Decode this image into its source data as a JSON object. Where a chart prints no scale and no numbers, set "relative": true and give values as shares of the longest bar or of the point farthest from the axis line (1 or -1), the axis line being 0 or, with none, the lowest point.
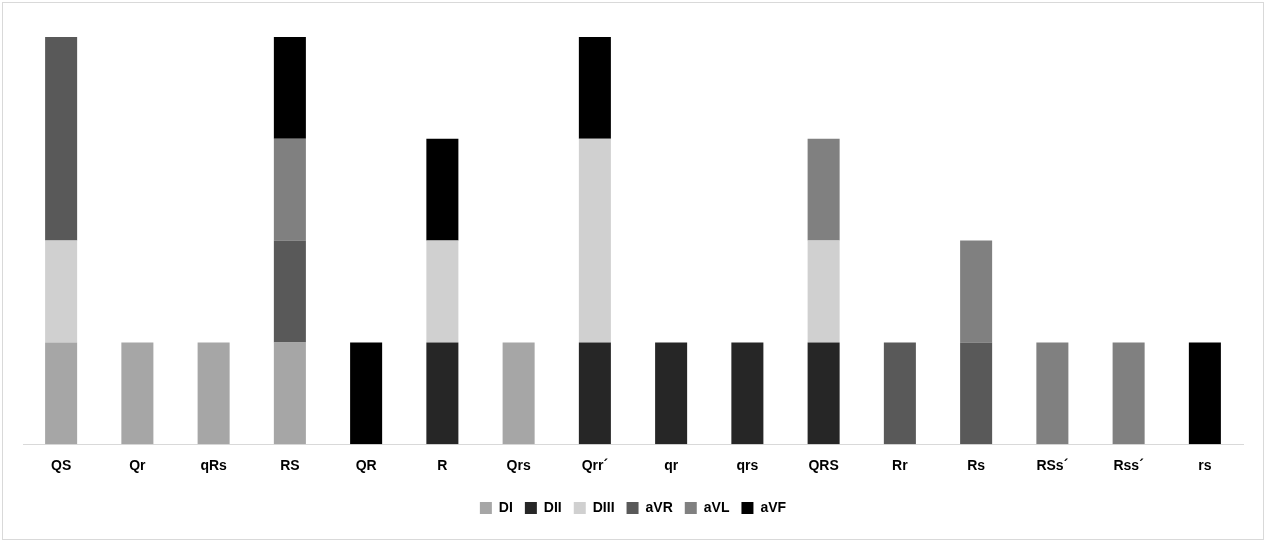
{
  "chart_data": {
    "type": "bar",
    "stacked": true,
    "relative": true,
    "legend": "bottom",
    "grid": false,
    "categories": [
      "QS",
      "Qr",
      "qRs",
      "RS",
      "QR",
      "R",
      "Qrs",
      "Qrr´",
      "qr",
      "qrs",
      "QRS",
      "Rr",
      "Rs",
      "RSs´",
      "Rss´",
      "rs"
    ],
    "series": [
      {
        "name": "DI",
        "color": "#a6a6a6",
        "values": [
          0.25,
          0.25,
          0.25,
          0.25,
          null,
          null,
          0.25,
          null,
          null,
          null,
          null,
          null,
          null,
          null,
          null,
          null
        ]
      },
      {
        "name": "DII",
        "color": "#262626",
        "values": [
          null,
          null,
          null,
          null,
          null,
          0.25,
          null,
          0.25,
          0.25,
          0.25,
          0.25,
          null,
          null,
          null,
          null,
          null
        ]
      },
      {
        "name": "DIII",
        "color": "#d0d0d0",
        "values": [
          0.25,
          null,
          null,
          null,
          null,
          0.25,
          null,
          0.5,
          null,
          null,
          0.25,
          null,
          null,
          null,
          null,
          null
        ]
      },
      {
        "name": "aVR",
        "color": "#595959",
        "values": [
          0.5,
          null,
          null,
          0.25,
          null,
          null,
          null,
          null,
          null,
          null,
          null,
          0.25,
          0.25,
          null,
          null,
          null
        ]
      },
      {
        "name": "aVL",
        "color": "#808080",
        "values": [
          null,
          null,
          null,
          0.25,
          null,
          null,
          null,
          null,
          null,
          null,
          0.25,
          null,
          0.25,
          0.25,
          0.25,
          null
        ]
      },
      {
        "name": "aVF",
        "color": "#000000",
        "values": [
          null,
          null,
          null,
          0.25,
          0.25,
          0.25,
          null,
          0.25,
          null,
          null,
          null,
          null,
          null,
          null,
          null,
          0.25
        ]
      }
    ]
  }
}
